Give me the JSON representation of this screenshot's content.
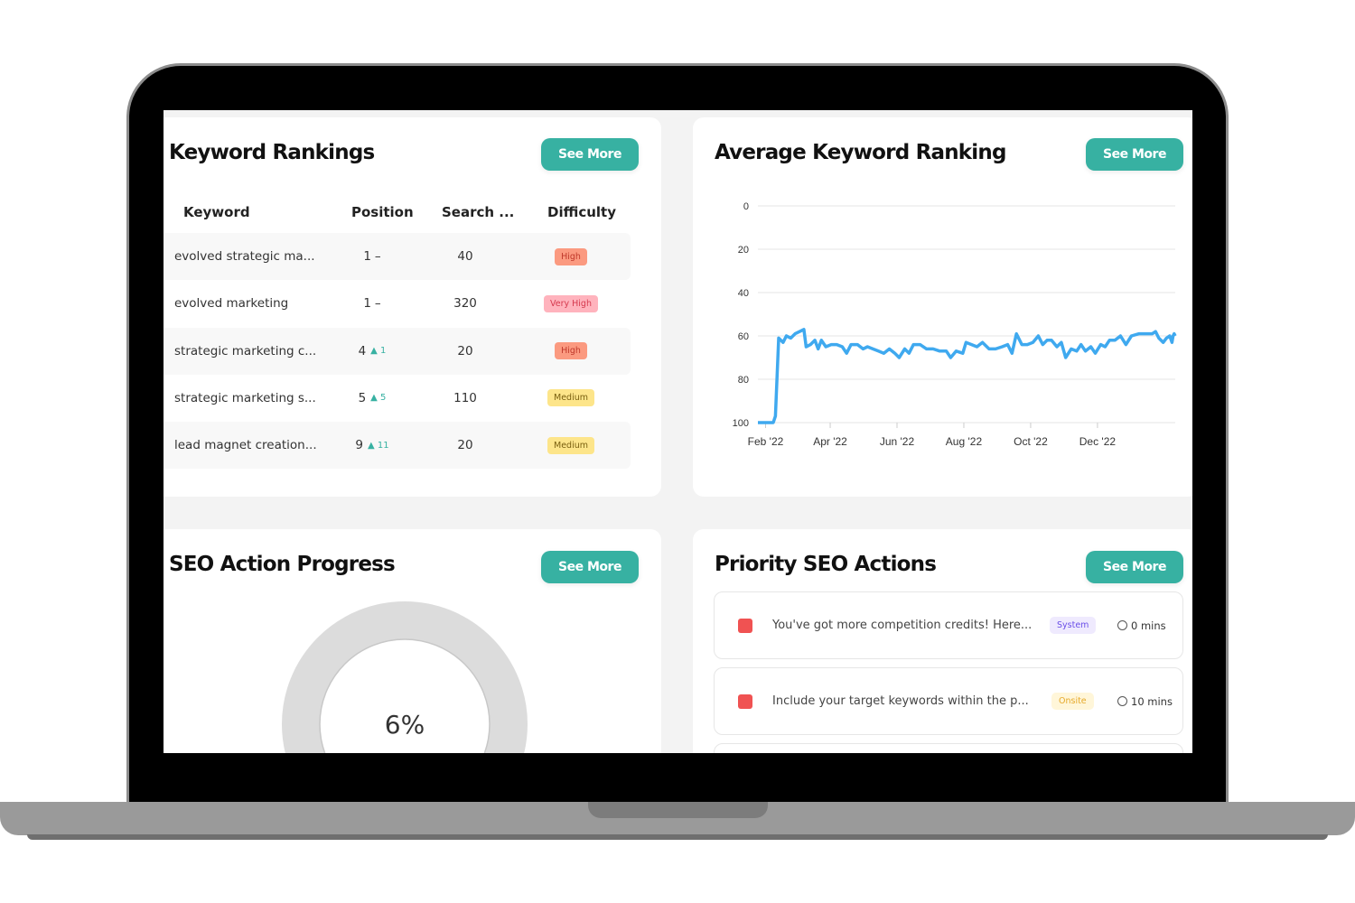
{
  "keyword_rankings": {
    "title": "Keyword Rankings",
    "see_more": "See More",
    "columns": [
      "Keyword",
      "Position",
      "Search ...",
      "Difficulty"
    ],
    "rows": [
      {
        "keyword": "evolved strategic ma...",
        "position": "1",
        "change": "–",
        "change_dir": "none",
        "search": "40",
        "difficulty": "High"
      },
      {
        "keyword": "evolved marketing",
        "position": "1",
        "change": "–",
        "change_dir": "none",
        "search": "320",
        "difficulty": "Very High"
      },
      {
        "keyword": "strategic marketing c...",
        "position": "4",
        "change": "1",
        "change_dir": "up",
        "search": "20",
        "difficulty": "High"
      },
      {
        "keyword": "strategic marketing s...",
        "position": "5",
        "change": "5",
        "change_dir": "up",
        "search": "110",
        "difficulty": "Medium"
      },
      {
        "keyword": "lead magnet creation...",
        "position": "9",
        "change": "11",
        "change_dir": "up",
        "search": "20",
        "difficulty": "Medium"
      }
    ],
    "difficulty_colors": {
      "High": {
        "bg": "#fb9a80",
        "fg": "#c0392b"
      },
      "Very High": {
        "bg": "#ffb3bd",
        "fg": "#d63a4f"
      },
      "Medium": {
        "bg": "#fde58a",
        "fg": "#7a6010"
      }
    }
  },
  "average_ranking": {
    "title": "Average Keyword Ranking",
    "see_more": "See More"
  },
  "chart_data": {
    "type": "line",
    "title": "",
    "xlabel": "",
    "ylabel": "",
    "y_reversed": true,
    "ylim": [
      0,
      100
    ],
    "y_ticks": [
      "0",
      "20",
      "40",
      "60",
      "80",
      "100"
    ],
    "x_ticks": [
      "Feb '22",
      "Apr '22",
      "Jun '22",
      "Aug '22",
      "Oct '22",
      "Dec '22"
    ],
    "x_tick_dates": [
      "2022-02-01",
      "2022-04-01",
      "2022-06-01",
      "2022-08-01",
      "2022-10-01",
      "2022-12-01"
    ],
    "xlim": [
      "2022-01-25",
      "2023-02-10"
    ],
    "grid": true,
    "color": "#3fa9ef",
    "series": [
      {
        "points": [
          [
            "2022-01-25",
            100
          ],
          [
            "2022-02-03",
            100
          ],
          [
            "2022-02-08",
            100
          ],
          [
            "2022-02-10",
            97
          ],
          [
            "2022-02-13",
            61
          ],
          [
            "2022-02-17",
            63
          ],
          [
            "2022-02-20",
            60
          ],
          [
            "2022-02-24",
            61
          ],
          [
            "2022-02-28",
            59
          ],
          [
            "2022-03-04",
            58
          ],
          [
            "2022-03-08",
            57
          ],
          [
            "2022-03-10",
            65
          ],
          [
            "2022-03-14",
            64
          ],
          [
            "2022-03-18",
            62
          ],
          [
            "2022-03-21",
            66
          ],
          [
            "2022-03-24",
            62
          ],
          [
            "2022-03-28",
            65
          ],
          [
            "2022-04-02",
            64
          ],
          [
            "2022-04-07",
            64
          ],
          [
            "2022-04-12",
            65
          ],
          [
            "2022-04-16",
            68
          ],
          [
            "2022-04-20",
            64
          ],
          [
            "2022-04-26",
            64
          ],
          [
            "2022-05-01",
            66
          ],
          [
            "2022-05-05",
            65
          ],
          [
            "2022-05-10",
            66
          ],
          [
            "2022-05-15",
            67
          ],
          [
            "2022-05-20",
            68
          ],
          [
            "2022-05-25",
            66
          ],
          [
            "2022-05-30",
            68
          ],
          [
            "2022-06-03",
            70
          ],
          [
            "2022-06-08",
            66
          ],
          [
            "2022-06-12",
            68
          ],
          [
            "2022-06-16",
            64
          ],
          [
            "2022-06-22",
            64
          ],
          [
            "2022-06-28",
            66
          ],
          [
            "2022-07-04",
            66
          ],
          [
            "2022-07-10",
            67
          ],
          [
            "2022-07-16",
            67
          ],
          [
            "2022-07-20",
            70
          ],
          [
            "2022-07-25",
            67
          ],
          [
            "2022-07-31",
            68
          ],
          [
            "2022-08-03",
            63
          ],
          [
            "2022-08-08",
            64
          ],
          [
            "2022-08-13",
            65
          ],
          [
            "2022-08-18",
            63
          ],
          [
            "2022-08-24",
            66
          ],
          [
            "2022-08-30",
            66
          ],
          [
            "2022-09-05",
            65
          ],
          [
            "2022-09-10",
            64
          ],
          [
            "2022-09-14",
            68
          ],
          [
            "2022-09-18",
            59
          ],
          [
            "2022-09-23",
            64
          ],
          [
            "2022-09-28",
            64
          ],
          [
            "2022-10-03",
            63
          ],
          [
            "2022-10-08",
            60
          ],
          [
            "2022-10-12",
            64
          ],
          [
            "2022-10-16",
            62
          ],
          [
            "2022-10-20",
            62
          ],
          [
            "2022-10-25",
            65
          ],
          [
            "2022-10-29",
            63
          ],
          [
            "2022-11-02",
            70
          ],
          [
            "2022-11-07",
            66
          ],
          [
            "2022-11-12",
            67
          ],
          [
            "2022-11-16",
            64
          ],
          [
            "2022-11-20",
            67
          ],
          [
            "2022-11-25",
            65
          ],
          [
            "2022-11-29",
            68
          ],
          [
            "2022-12-04",
            64
          ],
          [
            "2022-12-08",
            65
          ],
          [
            "2022-12-12",
            62
          ],
          [
            "2022-12-17",
            62
          ],
          [
            "2022-12-22",
            60
          ],
          [
            "2022-12-27",
            64
          ],
          [
            "2023-01-01",
            60
          ],
          [
            "2023-01-08",
            59
          ],
          [
            "2023-01-15",
            59
          ],
          [
            "2023-01-20",
            59
          ],
          [
            "2023-01-23",
            58
          ],
          [
            "2023-01-26",
            61
          ],
          [
            "2023-01-30",
            63
          ],
          [
            "2023-02-02",
            61
          ],
          [
            "2023-02-05",
            60
          ],
          [
            "2023-02-07",
            63
          ],
          [
            "2023-02-08",
            60
          ],
          [
            "2023-02-09",
            59
          ],
          [
            "2023-02-10",
            60
          ]
        ]
      }
    ]
  },
  "seo_progress": {
    "title": "SEO Action Progress",
    "see_more": "See More",
    "percent_label": "6%",
    "percent": 6
  },
  "priority_actions": {
    "title": "Priority SEO Actions",
    "see_more": "See More",
    "items": [
      {
        "text": "You've got more competition credits! Here...",
        "tag": "System",
        "tag_bg": "#efeafe",
        "tag_fg": "#6a4ee8",
        "time": "0 mins",
        "status_color": "#f05252"
      },
      {
        "text": "Include your target keywords within the p...",
        "tag": "Onsite",
        "tag_bg": "#fff6d9",
        "tag_fg": "#e6a92a",
        "time": "10 mins",
        "status_color": "#f05252"
      }
    ]
  }
}
